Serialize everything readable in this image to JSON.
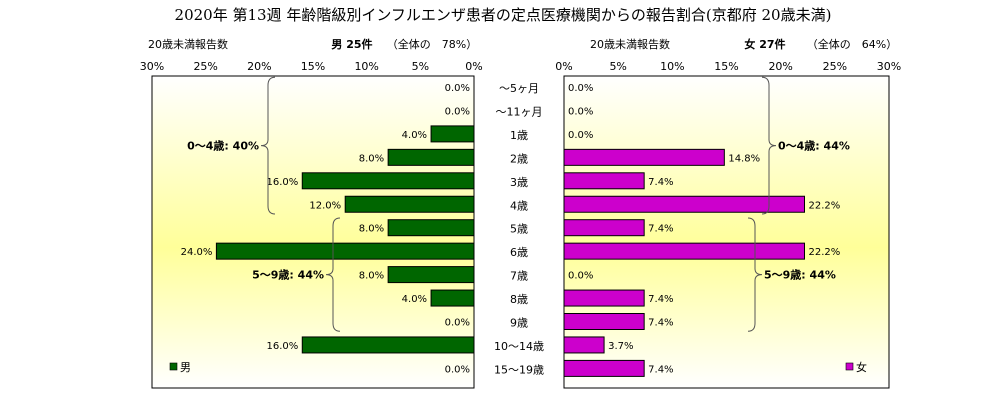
{
  "chart_data": {
    "type": "bar",
    "title": "2020年 第13週 年齢階級別インフルエンザ患者の定点医療機関からの報告割合(京都府 20歳未満)",
    "categories": [
      "～5ヶ月",
      "～11ヶ月",
      "1歳",
      "2歳",
      "3歳",
      "4歳",
      "5歳",
      "6歳",
      "7歳",
      "8歳",
      "9歳",
      "10～14歳",
      "15～19歳"
    ],
    "xlim": [
      0,
      30
    ],
    "ticks": [
      0,
      5,
      10,
      15,
      20,
      25,
      30
    ],
    "grid": false,
    "series": [
      {
        "name": "男",
        "side": "left",
        "color": "#006600",
        "header": "男 25件",
        "header_note": "（全体の　78%）",
        "axis_label": "20歳未満報告数",
        "values": [
          0.0,
          0.0,
          4.0,
          8.0,
          16.0,
          12.0,
          8.0,
          24.0,
          8.0,
          4.0,
          0.0,
          16.0,
          0.0
        ],
        "labels": [
          "0.0%",
          "0.0%",
          "4.0%",
          "8.0%",
          "16.0%",
          "12.0%",
          "8.0%",
          "24.0%",
          "8.0%",
          "4.0%",
          "0.0%",
          "16.0%",
          "0.0%"
        ]
      },
      {
        "name": "女",
        "side": "right",
        "color": "#cc00cc",
        "header": "女 27件",
        "header_note": "（全体の　64%）",
        "axis_label": "20歳未満報告数",
        "values": [
          0.0,
          0.0,
          0.0,
          14.8,
          7.4,
          22.2,
          7.4,
          22.2,
          0.0,
          7.4,
          7.4,
          3.7,
          7.4
        ],
        "labels": [
          "0.0%",
          "0.0%",
          "0.0%",
          "14.8%",
          "7.4%",
          "22.2%",
          "7.4%",
          "22.2%",
          "0.0%",
          "7.4%",
          "7.4%",
          "3.7%",
          "7.4%"
        ]
      }
    ],
    "annotations": {
      "left": [
        {
          "text": "0～4歳: 40%",
          "from": 0,
          "to": 5
        },
        {
          "text": "5～9歳: 44%",
          "from": 6,
          "to": 10
        }
      ],
      "right": [
        {
          "text": "0～4歳: 44%",
          "from": 0,
          "to": 5
        },
        {
          "text": "5～9歳: 44%",
          "from": 6,
          "to": 10
        }
      ]
    },
    "tick_labels": [
      "0%",
      "5%",
      "10%",
      "15%",
      "20%",
      "25%",
      "30%"
    ]
  },
  "colors": {
    "panel_bottom": "#ffff99",
    "panel_top": "#ffffff",
    "bar_border": "#000000"
  }
}
